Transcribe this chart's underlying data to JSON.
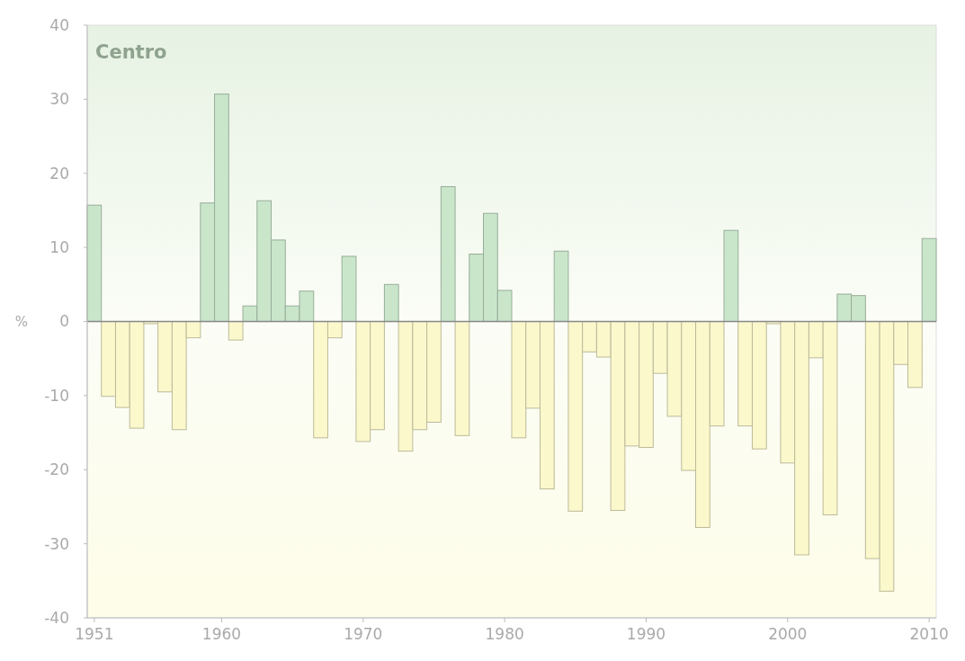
{
  "chart_data": {
    "type": "bar",
    "title": "Centro",
    "ylabel": "%",
    "x": [
      1951,
      1952,
      1953,
      1954,
      1955,
      1956,
      1957,
      1958,
      1959,
      1960,
      1961,
      1962,
      1963,
      1964,
      1965,
      1966,
      1967,
      1968,
      1969,
      1970,
      1971,
      1972,
      1973,
      1974,
      1975,
      1976,
      1977,
      1978,
      1979,
      1980,
      1981,
      1982,
      1983,
      1984,
      1985,
      1986,
      1987,
      1988,
      1989,
      1990,
      1991,
      1992,
      1993,
      1994,
      1995,
      1996,
      1997,
      1998,
      1999,
      2000,
      2001,
      2002,
      2003,
      2004,
      2005,
      2006,
      2007,
      2008,
      2009,
      2010
    ],
    "values": [
      15.7,
      -10.1,
      -11.6,
      -14.4,
      -0.3,
      -9.5,
      -14.6,
      -2.2,
      16,
      30.7,
      -2.5,
      2.1,
      16.3,
      11,
      2.1,
      4.1,
      -15.7,
      -2.2,
      8.8,
      -16.2,
      -14.6,
      5,
      -17.5,
      -14.6,
      -13.6,
      18.2,
      -15.4,
      9.1,
      14.6,
      4.2,
      -15.7,
      -11.7,
      -22.6,
      9.5,
      -25.6,
      -4.1,
      -4.8,
      -25.5,
      -16.8,
      -17,
      -7,
      -12.8,
      -20.1,
      -27.8,
      -14.1,
      12.3,
      -14.1,
      -17.2,
      -0.3,
      -19.1,
      -31.5,
      -4.9,
      -26.1,
      3.7,
      3.5,
      -32,
      -36.4,
      -5.8,
      -8.9,
      11.2
    ],
    "colors": [
      "#c9e6cb",
      "#fbf8cc",
      "#fbf8cc",
      "#fbf8cc",
      "#fbf8cc",
      "#fbf8cc",
      "#fbf8cc",
      "#fbf8cc",
      "#c9e6cb",
      "#c9e6cb",
      "#fbf8cc",
      "#c9e6cb",
      "#c9e6cb",
      "#c9e6cb",
      "#c9e6cb",
      "#c9e6cb",
      "#fbf8cc",
      "#fbf8cc",
      "#c9e6cb",
      "#fbf8cc",
      "#fbf8cc",
      "#c9e6cb",
      "#fbf8cc",
      "#fbf8cc",
      "#fbf8cc",
      "#c9e6cb",
      "#fbf8cc",
      "#c9e6cb",
      "#c9e6cb",
      "#c9e6cb",
      "#fbf8cc",
      "#fbf8cc",
      "#fbf8cc",
      "#c9e6cb",
      "#fbf8cc",
      "#fbf8cc",
      "#fbf8cc",
      "#fbf8cc",
      "#fbf8cc",
      "#fbf8cc",
      "#fbf8cc",
      "#fbf8cc",
      "#fbf8cc",
      "#fbf8cc",
      "#fbf8cc",
      "#c9e6cb",
      "#fbf8cc",
      "#fbf8cc",
      "#fbf8cc",
      "#fbf8cc",
      "#fbf8cc",
      "#fbf8cc",
      "#fbf8cc",
      "#c9e6cb",
      "#c9e6cb",
      "#fbf8cc",
      "#fbf8cc",
      "#fbf8cc",
      "#fbf8cc",
      "#c9e6cb"
    ],
    "xlim": [
      1950.5,
      2010.5
    ],
    "xticks": [
      1951,
      1960,
      1970,
      1980,
      1990,
      2000,
      2010
    ],
    "ylim": [
      -40,
      40
    ],
    "yticks": [
      -40,
      -30,
      -20,
      -10,
      0,
      10,
      20,
      30,
      40
    ]
  }
}
